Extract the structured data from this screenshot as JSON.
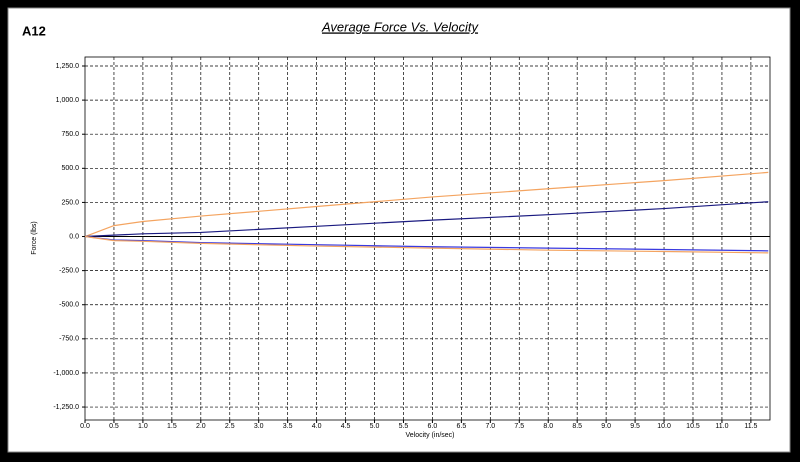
{
  "chart_data": {
    "type": "line",
    "title": "Average Force Vs. Velocity",
    "annotation": "A12",
    "xlabel": "Velocity (in/sec)",
    "ylabel": "Force (lbs)",
    "x": [
      0,
      0.5,
      1,
      2,
      4,
      6,
      8,
      10,
      11.8
    ],
    "series": [
      {
        "color": "#f4a460",
        "values": [
          0,
          80,
          110,
          150,
          220,
          290,
          350,
          410,
          470
        ]
      },
      {
        "color": "#1a1a80",
        "values": [
          0,
          10,
          20,
          30,
          75,
          120,
          160,
          205,
          255
        ]
      },
      {
        "color": "#3a3ae0",
        "values": [
          0,
          -25,
          -30,
          -45,
          -60,
          -75,
          -85,
          -95,
          -105
        ]
      },
      {
        "color": "#f4a460",
        "values": [
          0,
          -30,
          -35,
          -50,
          -70,
          -85,
          -100,
          -110,
          -120
        ]
      }
    ],
    "xlim": [
      0,
      11.83
    ],
    "ylim": [
      -1345,
      1316
    ],
    "xticks": [
      {
        "value": 0,
        "label": "0.0"
      },
      0.5,
      {
        "value": 1,
        "label": "1.0"
      },
      1.5,
      {
        "value": 2,
        "label": "2.0"
      },
      2.5,
      {
        "value": 3,
        "label": "3.0"
      },
      3.5,
      {
        "value": 4,
        "label": "4.0"
      },
      4.5,
      {
        "value": 5,
        "label": "5.0"
      },
      5.5,
      {
        "value": 6,
        "label": "6.0"
      },
      6.5,
      {
        "value": 7,
        "label": "7.0"
      },
      7.5,
      {
        "value": 8,
        "label": "8.0"
      },
      8.5,
      {
        "value": 9,
        "label": "9.0"
      },
      9.5,
      {
        "value": 10,
        "label": "10.0"
      },
      10.5,
      {
        "value": 11,
        "label": "11.0"
      },
      11.5
    ],
    "yticks": [
      {
        "value": 1250,
        "label": "1,250.0"
      },
      {
        "value": 1000,
        "label": "1,000.0"
      },
      {
        "value": 750,
        "label": "750.0"
      },
      {
        "value": 500,
        "label": "500.0"
      },
      {
        "value": 250,
        "label": "250.0"
      },
      {
        "value": 0,
        "label": "0.0"
      },
      {
        "value": -250,
        "label": "-250.0"
      },
      {
        "value": -500,
        "label": "-500.0"
      },
      {
        "value": -750,
        "label": "-750.0"
      },
      {
        "value": -1000,
        "label": "-1,000.0"
      },
      {
        "value": -1250,
        "label": "-1,250.0"
      }
    ],
    "grid": true
  }
}
